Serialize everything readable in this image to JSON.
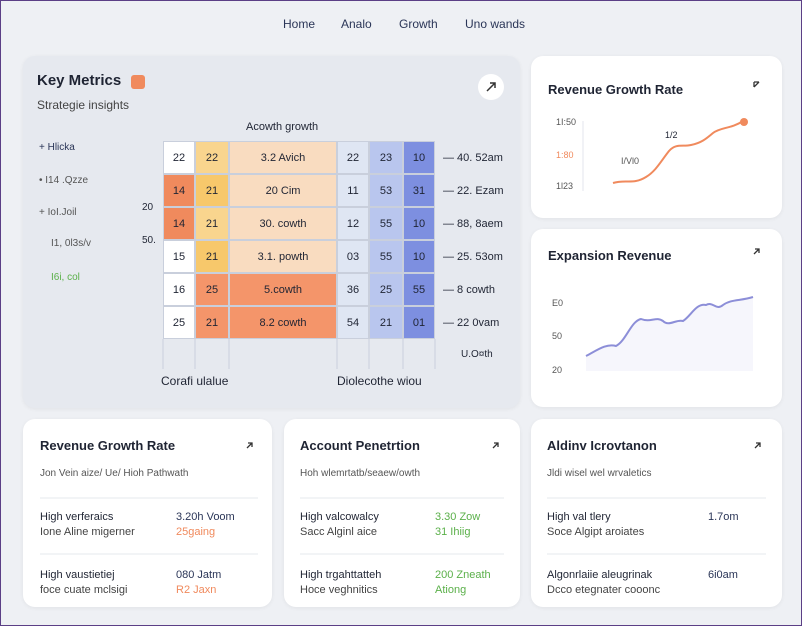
{
  "nav": [
    "Home",
    "Analo",
    "Growth",
    "Uno wands"
  ],
  "key_metrics": {
    "title": "Key Metrics",
    "subtitle": "Strategie insights",
    "side_labels": [
      "+  Hlicka",
      "•  I14 .Qzze",
      "+  IoI.Joil",
      "I1, 0l3s/v",
      "I6i, col"
    ],
    "row_marks": [
      "20",
      "50."
    ],
    "grid_title": "Acowth growth",
    "rows": [
      [
        "22",
        "22",
        "3.2 Avich",
        "22",
        "23",
        "10",
        "— 40. 52am"
      ],
      [
        "14",
        "21",
        "20 Cim",
        "11",
        "53",
        "31",
        "— 22. Ezam"
      ],
      [
        "14",
        "21",
        "30. cowth",
        "12",
        "55",
        "10",
        "— 88, 8aem"
      ],
      [
        "15",
        "21",
        "3.1. powth",
        "03",
        "55",
        "10",
        "— 25. 53om"
      ],
      [
        "16",
        "25",
        "5.cowth",
        "36",
        "25",
        "55",
        "— 8 cowth"
      ],
      [
        "25",
        "21",
        "8.2 cowth",
        "54",
        "21",
        "01",
        "— 22 0vam"
      ]
    ],
    "footer_left": "Corafi ulalue",
    "footer_right": "Diolecothe wiou",
    "footer_note": "U.O¤th"
  },
  "growth_card": {
    "title": "Revenue Growth Rate",
    "labels": [
      "1I:50",
      "1:80",
      "1l23"
    ],
    "notes": [
      "1/2",
      "I/Vl0"
    ]
  },
  "expansion_card": {
    "title": "Expansion Revenue",
    "labels": [
      "E0",
      "50",
      "20"
    ]
  },
  "bottom_cards": [
    {
      "title": "Revenue Growth Rate",
      "subtitle": "Jon Vein aize/ Ue/ Hioh Pathwath",
      "items": [
        [
          "High verferaics",
          "Ione Aline migerner",
          "3.20h Voom",
          "25gaing"
        ],
        [
          "High vaustietiej",
          "foce cuate mclsigi",
          "080 Jatm",
          "R2 Jaxn"
        ]
      ]
    },
    {
      "title": "Account Penetrtion",
      "subtitle": "Hoh wlemrtatb/seaew/owth",
      "items": [
        [
          "High valcowalcy",
          "Sacc Alginl aice",
          "3.30 Zow",
          "31 Ihiig"
        ],
        [
          "High trgahttatteh",
          "Hoce veghnitics",
          "200 Zneath",
          "Ationg"
        ]
      ]
    },
    {
      "title": "Aldinv Icrovtanon",
      "subtitle": "Jldi wisel wel wrvaletics",
      "items": [
        [
          "High val tlery",
          "Soce Algipt aroiates",
          "1.7om"
        ],
        [
          "Algonrlaiie aleugrinak",
          "Dcco etegnater cooonc",
          "6i0am"
        ]
      ]
    }
  ]
}
